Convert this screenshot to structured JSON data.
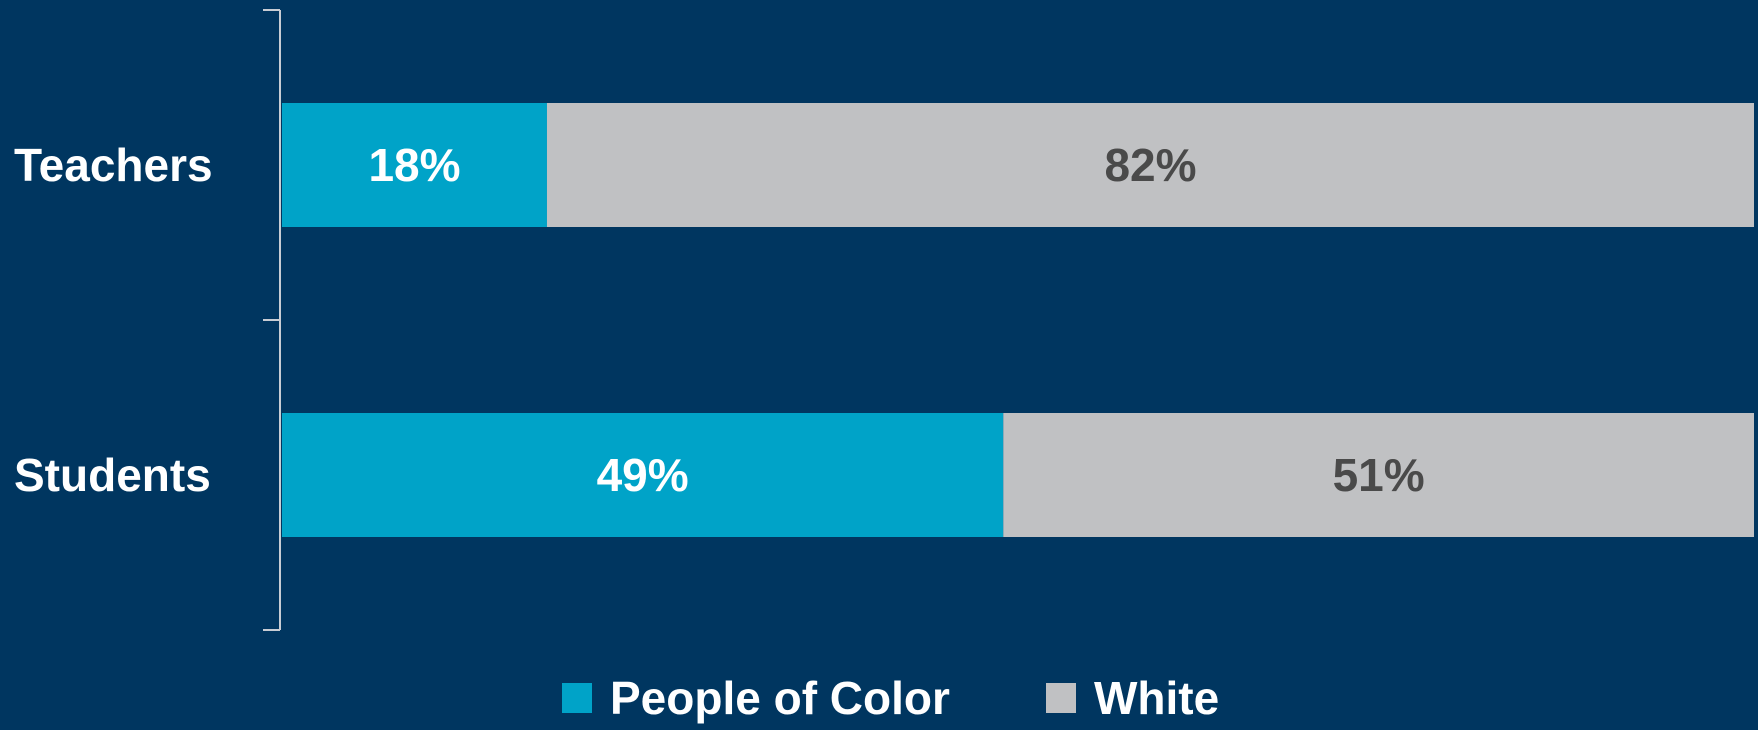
{
  "chart_data": {
    "type": "bar",
    "orientation": "horizontal",
    "stacked": true,
    "categories": [
      "Teachers",
      "Students"
    ],
    "series": [
      {
        "name": "People of Color",
        "values": [
          18,
          49
        ],
        "labels": [
          "18%",
          "49%"
        ]
      },
      {
        "name": "White",
        "values": [
          82,
          51
        ],
        "labels": [
          "82%",
          "51%"
        ]
      }
    ],
    "xlim": [
      0,
      100
    ],
    "grid": false,
    "legend_position": "bottom"
  },
  "colors": {
    "background": "#003660",
    "people_of_color": "#00a3c8",
    "white": "#c0c1c3",
    "label_on_accent": "#ffffff",
    "label_on_gray": "#4a4a4a",
    "axis": "#c8cdd4"
  }
}
